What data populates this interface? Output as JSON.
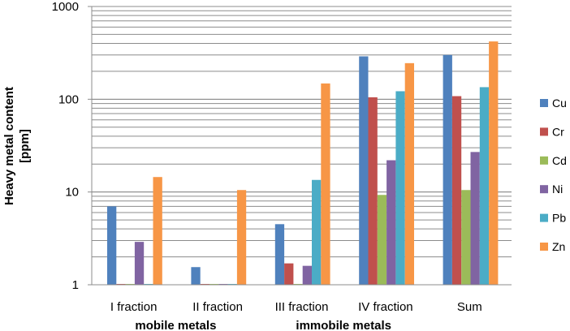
{
  "chart_data": {
    "type": "bar",
    "yscale": "log",
    "ylim": [
      1,
      1000
    ],
    "ylabel_lines": [
      "Heavy metal content",
      "[ppm]"
    ],
    "yticks": [
      {
        "value": 1,
        "label": "1"
      },
      {
        "value": 10,
        "label": "10"
      },
      {
        "value": 100,
        "label": "100"
      },
      {
        "value": 1000,
        "label": "1000"
      }
    ],
    "categories": [
      "I fraction",
      "II fraction",
      "III fraction",
      "IV fraction",
      "Sum"
    ],
    "groups": [
      {
        "label": "mobile metals",
        "span": [
          0,
          1
        ]
      },
      {
        "label": "immobile metals",
        "span": [
          2,
          3
        ]
      }
    ],
    "grid": true,
    "legend_position": "right",
    "series": [
      {
        "name": "Cu",
        "color": "#4F81BD",
        "values": [
          7.0,
          1.55,
          4.5,
          290,
          300
        ]
      },
      {
        "name": "Cr",
        "color": "#C0504D",
        "values": [
          1.0,
          1.0,
          1.7,
          105,
          108
        ]
      },
      {
        "name": "Cd",
        "color": "#9BBB59",
        "values": [
          1.0,
          1.0,
          1.0,
          9.3,
          10.5
        ]
      },
      {
        "name": "Ni",
        "color": "#8064A2",
        "values": [
          2.9,
          1.0,
          1.6,
          22,
          27
        ]
      },
      {
        "name": "Pb",
        "color": "#4BACC6",
        "values": [
          1.0,
          1.0,
          13.5,
          122,
          135
        ]
      },
      {
        "name": "Zn",
        "color": "#F79646",
        "values": [
          14.5,
          10.5,
          148,
          245,
          420
        ]
      }
    ]
  }
}
